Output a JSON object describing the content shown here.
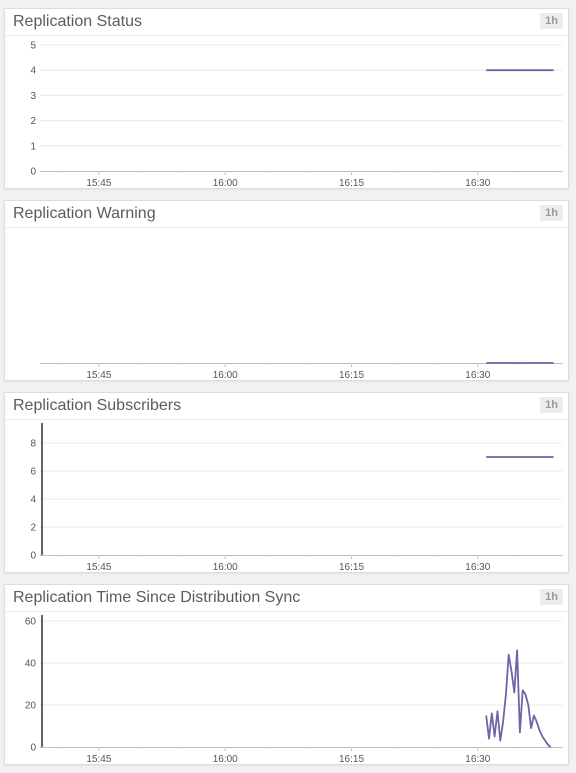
{
  "colors": {
    "series": "#6f64a6",
    "grid": "#e9e9e9",
    "axis": "#bdbdbd",
    "text": "#555555"
  },
  "panels": [
    {
      "id": "status",
      "title": "Replication Status",
      "range": "1h",
      "chart_data": {
        "type": "line",
        "title": "Replication Status",
        "xlabel": "",
        "ylabel": "",
        "x_ticks": [
          "15:45",
          "16:00",
          "16:15",
          "16:30"
        ],
        "y_ticks": [
          0,
          1,
          2,
          3,
          4,
          5
        ],
        "ylim": [
          0,
          5
        ],
        "grid": true,
        "legend": "none",
        "series": [
          {
            "x": [
              "16:31",
              "16:32",
              "16:33",
              "16:34",
              "16:35",
              "16:36",
              "16:37",
              "16:38",
              "16:39"
            ],
            "values": [
              4,
              4,
              4,
              4,
              4,
              4,
              4,
              4,
              4
            ]
          }
        ]
      }
    },
    {
      "id": "warning",
      "title": "Replication Warning",
      "range": "1h",
      "chart_data": {
        "type": "line",
        "title": "Replication Warning",
        "xlabel": "",
        "ylabel": "",
        "x_ticks": [
          "15:45",
          "16:00",
          "16:15",
          "16:30"
        ],
        "y_ticks": [],
        "ylim": [
          0,
          1
        ],
        "grid": false,
        "legend": "none",
        "series": [
          {
            "x": [
              "16:31",
              "16:33",
              "16:35",
              "16:37",
              "16:39"
            ],
            "values": [
              0,
              0,
              0,
              0,
              0
            ]
          }
        ]
      }
    },
    {
      "id": "subscribers",
      "title": "Replication Subscribers",
      "range": "1h",
      "chart_data": {
        "type": "line",
        "title": "Replication Subscribers",
        "xlabel": "",
        "ylabel": "",
        "x_ticks": [
          "15:45",
          "16:00",
          "16:15",
          "16:30"
        ],
        "y_ticks": [
          0,
          2,
          4,
          6,
          8
        ],
        "ylim": [
          0,
          9
        ],
        "grid": true,
        "legend": "none",
        "series": [
          {
            "x": [
              "16:31",
              "16:33",
              "16:35",
              "16:37",
              "16:39"
            ],
            "values": [
              7,
              7,
              7,
              7,
              7
            ]
          }
        ]
      }
    },
    {
      "id": "timesync",
      "title": "Replication Time Since Distribution Sync",
      "range": "1h",
      "chart_data": {
        "type": "line",
        "title": "Replication Time Since Distribution Sync",
        "xlabel": "",
        "ylabel": "",
        "x_ticks": [
          "15:45",
          "16:00",
          "16:15",
          "16:30"
        ],
        "y_ticks": [
          0,
          20,
          40,
          60
        ],
        "ylim": [
          0,
          60
        ],
        "grid": true,
        "legend": "none",
        "series": [
          {
            "x": [
              "16:31:00",
              "16:31:20",
              "16:31:40",
              "16:32:00",
              "16:32:20",
              "16:32:40",
              "16:33:00",
              "16:33:20",
              "16:33:40",
              "16:34:00",
              "16:34:20",
              "16:34:40",
              "16:35:00",
              "16:35:20",
              "16:35:40",
              "16:36:00",
              "16:36:20",
              "16:36:40",
              "16:37:00",
              "16:37:20",
              "16:37:40",
              "16:38:00",
              "16:38:20",
              "16:38:40"
            ],
            "values": [
              15,
              4,
              16,
              5,
              17,
              3,
              12,
              25,
              44,
              36,
              26,
              46,
              7,
              27,
              25,
              20,
              9,
              15,
              12,
              8,
              5,
              3,
              1,
              0
            ]
          }
        ]
      }
    }
  ]
}
